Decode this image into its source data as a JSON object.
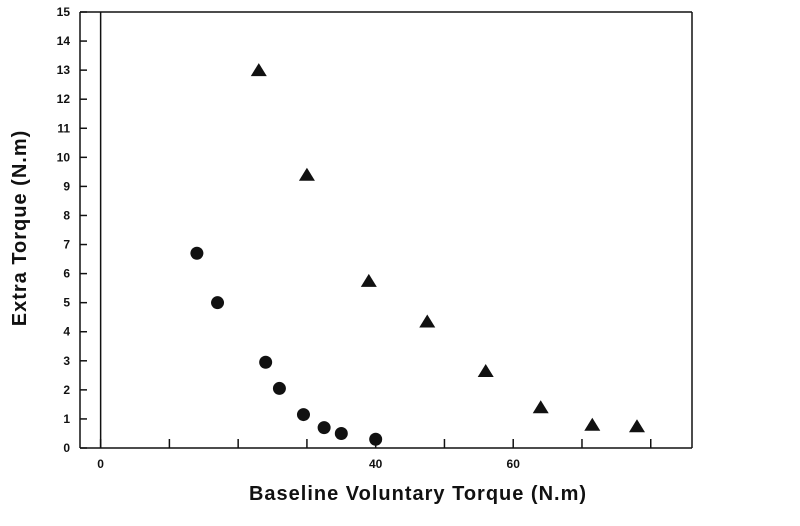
{
  "chart_data": {
    "type": "scatter",
    "title": "",
    "xlabel": "Baseline Voluntary Torque (N.m)",
    "ylabel": "Extra Torque (N.m)",
    "xlim": [
      -3,
      86
    ],
    "ylim": [
      0,
      15
    ],
    "x_ticks": [
      0,
      20,
      40,
      60,
      80
    ],
    "x_minor_ticks": [
      10,
      30,
      50,
      70
    ],
    "x_tick_labels": [
      "0",
      "",
      "40",
      "60",
      ""
    ],
    "y_ticks": [
      0,
      1,
      2,
      3,
      4,
      5,
      6,
      7,
      8,
      9,
      10,
      11,
      12,
      13,
      14,
      15
    ],
    "y_tick_labels": [
      "0",
      "1",
      "2",
      "3",
      "4",
      "5",
      "6",
      "7",
      "8",
      "9",
      "10",
      "11",
      "12",
      "13",
      "14",
      "15"
    ],
    "grid": false,
    "legend": "none",
    "series": [
      {
        "marker": "circle",
        "color": "#111111",
        "x": [
          14,
          17,
          24,
          26,
          29.5,
          32.5,
          35,
          40
        ],
        "y": [
          6.7,
          5.0,
          2.95,
          2.05,
          1.15,
          0.7,
          0.5,
          0.3
        ]
      },
      {
        "marker": "triangle",
        "color": "#111111",
        "x": [
          23,
          30,
          39,
          47.5,
          56,
          64,
          71.5,
          78
        ],
        "y": [
          13.0,
          9.4,
          5.75,
          4.35,
          2.65,
          1.4,
          0.8,
          0.75
        ]
      }
    ]
  }
}
